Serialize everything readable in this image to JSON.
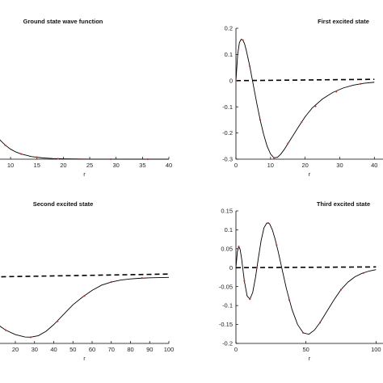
{
  "chart_data": [
    {
      "type": "line",
      "title": "Ground state wave function",
      "xlabel": "r",
      "ylabel": "",
      "xlim": [
        0,
        40
      ],
      "ylim": [
        0,
        0.6
      ],
      "xticks": [
        10,
        15,
        20,
        25,
        30,
        35,
        40
      ],
      "yticks": [],
      "grid": false,
      "series": [
        {
          "style": "solid",
          "color": "#000000",
          "x": [
            0,
            1,
            2,
            3,
            4,
            5,
            6,
            7,
            8,
            9,
            10,
            11,
            12,
            14,
            16,
            18,
            20,
            25,
            30,
            35,
            40
          ],
          "y": [
            0.6,
            0.55,
            0.46,
            0.37,
            0.29,
            0.22,
            0.165,
            0.12,
            0.088,
            0.064,
            0.046,
            0.033,
            0.024,
            0.012,
            0.006,
            0.003,
            0.0015,
            0.0003,
            0.0001,
            0.0,
            0.0
          ]
        }
      ],
      "markers": {
        "color": "#c0392b",
        "x": [
          9,
          12,
          15,
          19,
          23,
          29,
          36
        ],
        "y": [
          0.064,
          0.024,
          0.009,
          0.002,
          0.0007,
          0.0001,
          0.0
        ]
      }
    },
    {
      "type": "line",
      "title": "First excited state",
      "xlabel": "r",
      "ylabel": "",
      "xlim": [
        0,
        40
      ],
      "ylim": [
        -0.3,
        0.2
      ],
      "xticks": [
        0,
        10,
        20,
        30,
        40
      ],
      "yticks": [
        0.2,
        0.1,
        0,
        -0.1,
        -0.2,
        -0.3
      ],
      "grid": false,
      "series": [
        {
          "style": "solid",
          "color": "#000000",
          "x": [
            0,
            0.5,
            1,
            1.5,
            2,
            2.5,
            3,
            4,
            5,
            6,
            7,
            8,
            9,
            10,
            11,
            12,
            13,
            14,
            16,
            18,
            20,
            22,
            25,
            28,
            31,
            34,
            37,
            40
          ],
          "y": [
            0,
            0.1,
            0.145,
            0.158,
            0.155,
            0.14,
            0.115,
            0.055,
            -0.015,
            -0.085,
            -0.15,
            -0.205,
            -0.25,
            -0.28,
            -0.295,
            -0.293,
            -0.28,
            -0.262,
            -0.22,
            -0.178,
            -0.138,
            -0.105,
            -0.07,
            -0.045,
            -0.028,
            -0.017,
            -0.01,
            -0.006
          ]
        },
        {
          "style": "dashed",
          "color": "#000000",
          "x": [
            0,
            40
          ],
          "y": [
            0.0,
            0.005
          ]
        }
      ],
      "markers": {
        "color": "#c0392b",
        "x": [
          0,
          2,
          4,
          7,
          11,
          15,
          19,
          23,
          29,
          36
        ],
        "y": [
          0,
          0.155,
          0.055,
          -0.15,
          -0.295,
          -0.24,
          -0.158,
          -0.098,
          -0.042,
          -0.012
        ]
      }
    },
    {
      "type": "line",
      "title": "Second excited state",
      "xlabel": "r",
      "ylabel": "",
      "xlim": [
        0,
        100
      ],
      "ylim": [
        -0.3,
        0.3
      ],
      "xticks": [
        10,
        20,
        30,
        40,
        50,
        60,
        70,
        80,
        90,
        100
      ],
      "yticks": [],
      "grid": false,
      "series": [
        {
          "style": "solid",
          "color": "#000000",
          "x": [
            0,
            5,
            10,
            15,
            20,
            25,
            28,
            32,
            36,
            40,
            45,
            50,
            55,
            60,
            65,
            70,
            75,
            80,
            85,
            90,
            95,
            100
          ],
          "y": [
            -0.125,
            -0.17,
            -0.21,
            -0.24,
            -0.26,
            -0.271,
            -0.272,
            -0.265,
            -0.245,
            -0.215,
            -0.17,
            -0.125,
            -0.09,
            -0.06,
            -0.036,
            -0.022,
            -0.013,
            -0.008,
            -0.005,
            -0.003,
            -0.002,
            -0.001
          ]
        },
        {
          "style": "dashed",
          "color": "#000000",
          "x": [
            0,
            100
          ],
          "y": [
            0.0,
            0.014
          ]
        }
      ],
      "markers": {
        "color": "#c0392b",
        "x": [
          15,
          28,
          42,
          56,
          70,
          86
        ],
        "y": [
          -0.24,
          -0.272,
          -0.2,
          -0.085,
          -0.022,
          -0.004
        ]
      }
    },
    {
      "type": "line",
      "title": "Third excited state",
      "xlabel": "r",
      "ylabel": "",
      "xlim": [
        0,
        100
      ],
      "ylim": [
        -0.2,
        0.15
      ],
      "xticks": [
        0,
        50,
        100
      ],
      "yticks": [
        0.15,
        0.1,
        0.05,
        0,
        -0.05,
        -0.1,
        -0.15,
        -0.2
      ],
      "grid": false,
      "series": [
        {
          "style": "solid",
          "color": "#000000",
          "x": [
            0,
            1,
            2,
            3,
            4,
            5,
            6,
            8,
            10,
            12,
            14,
            16,
            18,
            20,
            22,
            24,
            26,
            28,
            30,
            33,
            36,
            40,
            44,
            48,
            52,
            56,
            60,
            65,
            70,
            75,
            80,
            85,
            90,
            95,
            100
          ],
          "y": [
            0,
            0.042,
            0.056,
            0.048,
            0.025,
            -0.005,
            -0.035,
            -0.075,
            -0.083,
            -0.065,
            -0.025,
            0.025,
            0.072,
            0.105,
            0.118,
            0.116,
            0.1,
            0.075,
            0.045,
            -0.005,
            -0.055,
            -0.11,
            -0.15,
            -0.172,
            -0.176,
            -0.165,
            -0.145,
            -0.115,
            -0.085,
            -0.058,
            -0.038,
            -0.024,
            -0.015,
            -0.009,
            -0.005
          ]
        },
        {
          "style": "dashed",
          "color": "#000000",
          "x": [
            0,
            100
          ],
          "y": [
            0.0,
            0.002
          ]
        }
      ],
      "markers": {
        "color": "#c0392b",
        "x": [
          2,
          6,
          10,
          15,
          23,
          29,
          38,
          48,
          60,
          75,
          91
        ],
        "y": [
          0.056,
          -0.035,
          -0.083,
          0.0,
          0.118,
          0.06,
          -0.085,
          -0.172,
          -0.145,
          -0.058,
          -0.014
        ]
      }
    }
  ]
}
